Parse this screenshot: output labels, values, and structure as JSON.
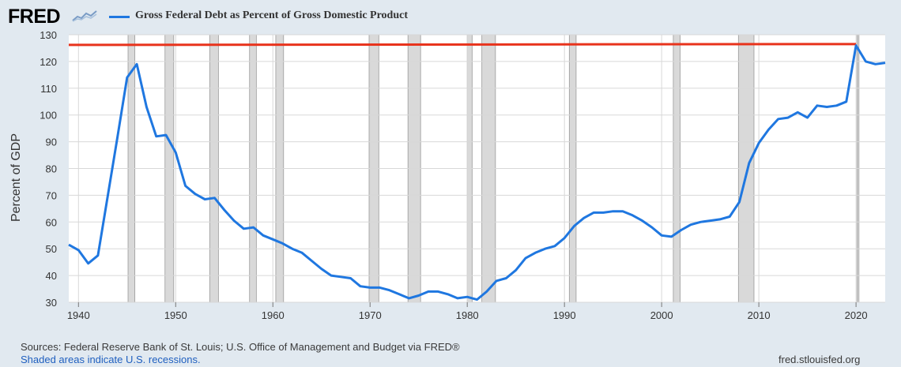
{
  "header": {
    "logo_text": "FRED",
    "legend_label": "Gross Federal Debt as Percent of Gross Domestic Product"
  },
  "colors": {
    "background": "#e1e9f0",
    "plot_bg": "#ffffff",
    "series": "#1f77e0",
    "reference_line": "#e8331c",
    "recession": "#d9d9d9"
  },
  "chart_data": {
    "type": "line",
    "title": "Gross Federal Debt as Percent of Gross Domestic Product",
    "xlabel": "",
    "ylabel": "Percent of GDP",
    "xlim": [
      1939,
      2023
    ],
    "ylim": [
      30,
      130
    ],
    "yticks": [
      30,
      40,
      50,
      60,
      70,
      80,
      90,
      100,
      110,
      120,
      130
    ],
    "xticks": [
      1940,
      1950,
      1960,
      1970,
      1980,
      1990,
      2000,
      2010,
      2020
    ],
    "grid": true,
    "series": [
      {
        "name": "Gross Federal Debt as Percent of Gross Domestic Product",
        "x": [
          1939,
          1940,
          1941,
          1942,
          1943,
          1944,
          1945,
          1946,
          1947,
          1948,
          1949,
          1950,
          1951,
          1952,
          1953,
          1954,
          1955,
          1956,
          1957,
          1958,
          1959,
          1960,
          1961,
          1962,
          1963,
          1964,
          1965,
          1966,
          1967,
          1968,
          1969,
          1970,
          1971,
          1972,
          1973,
          1974,
          1975,
          1976,
          1977,
          1978,
          1979,
          1980,
          1981,
          1982,
          1983,
          1984,
          1985,
          1986,
          1987,
          1988,
          1989,
          1990,
          1991,
          1992,
          1993,
          1994,
          1995,
          1996,
          1997,
          1998,
          1999,
          2000,
          2001,
          2002,
          2003,
          2004,
          2005,
          2006,
          2007,
          2008,
          2009,
          2010,
          2011,
          2012,
          2013,
          2014,
          2015,
          2016,
          2017,
          2018,
          2019,
          2020,
          2021,
          2022,
          2023
        ],
        "values": [
          51.5,
          49.5,
          44.5,
          47.5,
          69.5,
          91.5,
          114,
          119,
          103,
          92,
          92.5,
          86,
          73.5,
          70.5,
          68.5,
          69,
          64.5,
          60.5,
          57.5,
          58,
          55,
          53.5,
          52,
          50,
          48.5,
          45.5,
          42.5,
          40,
          39.5,
          39,
          36,
          35.5,
          35.5,
          34.5,
          33,
          31.5,
          32.5,
          34,
          34,
          33,
          31.5,
          32,
          31,
          34,
          38,
          39,
          42,
          46.5,
          48.5,
          50,
          51,
          54,
          58.5,
          61.5,
          63.5,
          63.5,
          64,
          64,
          62.5,
          60.5,
          58,
          55,
          54.5,
          57,
          59,
          60,
          60.5,
          61,
          62,
          67.5,
          82,
          89.5,
          94.5,
          98.5,
          99,
          101,
          99,
          103.5,
          103,
          103.5,
          105,
          126,
          120,
          119,
          119.5
        ]
      }
    ],
    "reference_line": {
      "value": 126.5,
      "from_x": 1939,
      "to_x": 2020
    },
    "recessions": [
      [
        1945.1,
        1945.8
      ],
      [
        1948.9,
        1949.8
      ],
      [
        1953.5,
        1954.4
      ],
      [
        1957.6,
        1958.3
      ],
      [
        1960.3,
        1961.1
      ],
      [
        1969.9,
        1970.9
      ],
      [
        1973.9,
        1975.2
      ],
      [
        1980.0,
        1980.5
      ],
      [
        1981.5,
        1982.9
      ],
      [
        1990.5,
        1991.2
      ],
      [
        2001.2,
        2001.9
      ],
      [
        2007.9,
        2009.5
      ],
      [
        2020.1,
        2020.3
      ]
    ]
  },
  "footer": {
    "sources": "Sources: Federal Reserve Bank of St. Louis; U.S. Office of Management and Budget via FRED®",
    "note": "Shaded areas indicate U.S. recessions.",
    "url": "fred.stlouisfed.org"
  }
}
